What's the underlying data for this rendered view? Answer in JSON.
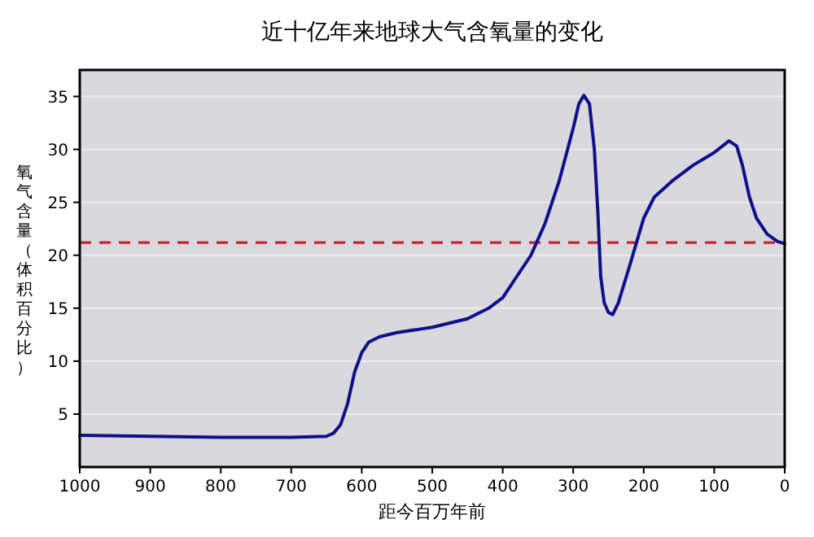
{
  "chart_data": {
    "type": "line",
    "title": "近十亿年来地球大气含氧量的变化",
    "xlabel": "距今百万年前",
    "ylabel": "氧气含量（体积百分比）",
    "x": [
      1000,
      900,
      800,
      700,
      650,
      640,
      630,
      620,
      610,
      600,
      590,
      575,
      550,
      500,
      450,
      420,
      400,
      380,
      360,
      340,
      320,
      300,
      292,
      285,
      277,
      270,
      265,
      261,
      256,
      250,
      244,
      236,
      220,
      200,
      185,
      160,
      130,
      100,
      79,
      68,
      60,
      50,
      40,
      25,
      10,
      0
    ],
    "series": [
      {
        "color": "#10108a",
        "values": [
          3.0,
          2.9,
          2.8,
          2.8,
          2.9,
          3.2,
          4.0,
          6.0,
          9.0,
          10.8,
          11.8,
          12.3,
          12.7,
          13.2,
          14.0,
          15.0,
          16.0,
          18.0,
          20.0,
          23.0,
          27.0,
          32.0,
          34.3,
          35.1,
          34.3,
          30.0,
          24.0,
          18.0,
          15.5,
          14.6,
          14.4,
          15.5,
          19.0,
          23.5,
          25.5,
          27.0,
          28.5,
          29.7,
          30.8,
          30.3,
          28.5,
          25.5,
          23.5,
          22.0,
          21.3,
          21.1
        ]
      }
    ],
    "xlim": [
      1000,
      0
    ],
    "ylim": [
      0,
      37.5
    ],
    "xticks": [
      1000,
      900,
      800,
      700,
      600,
      500,
      400,
      300,
      200,
      100,
      0
    ],
    "yticks": [
      5,
      10,
      15,
      20,
      25,
      30,
      35
    ],
    "ref_lines": [
      {
        "axis": "y",
        "value": 21.2,
        "color": "#cc2233",
        "line_style": "dashed"
      }
    ],
    "grid": "y",
    "line_style": "solid",
    "marker": "none"
  }
}
